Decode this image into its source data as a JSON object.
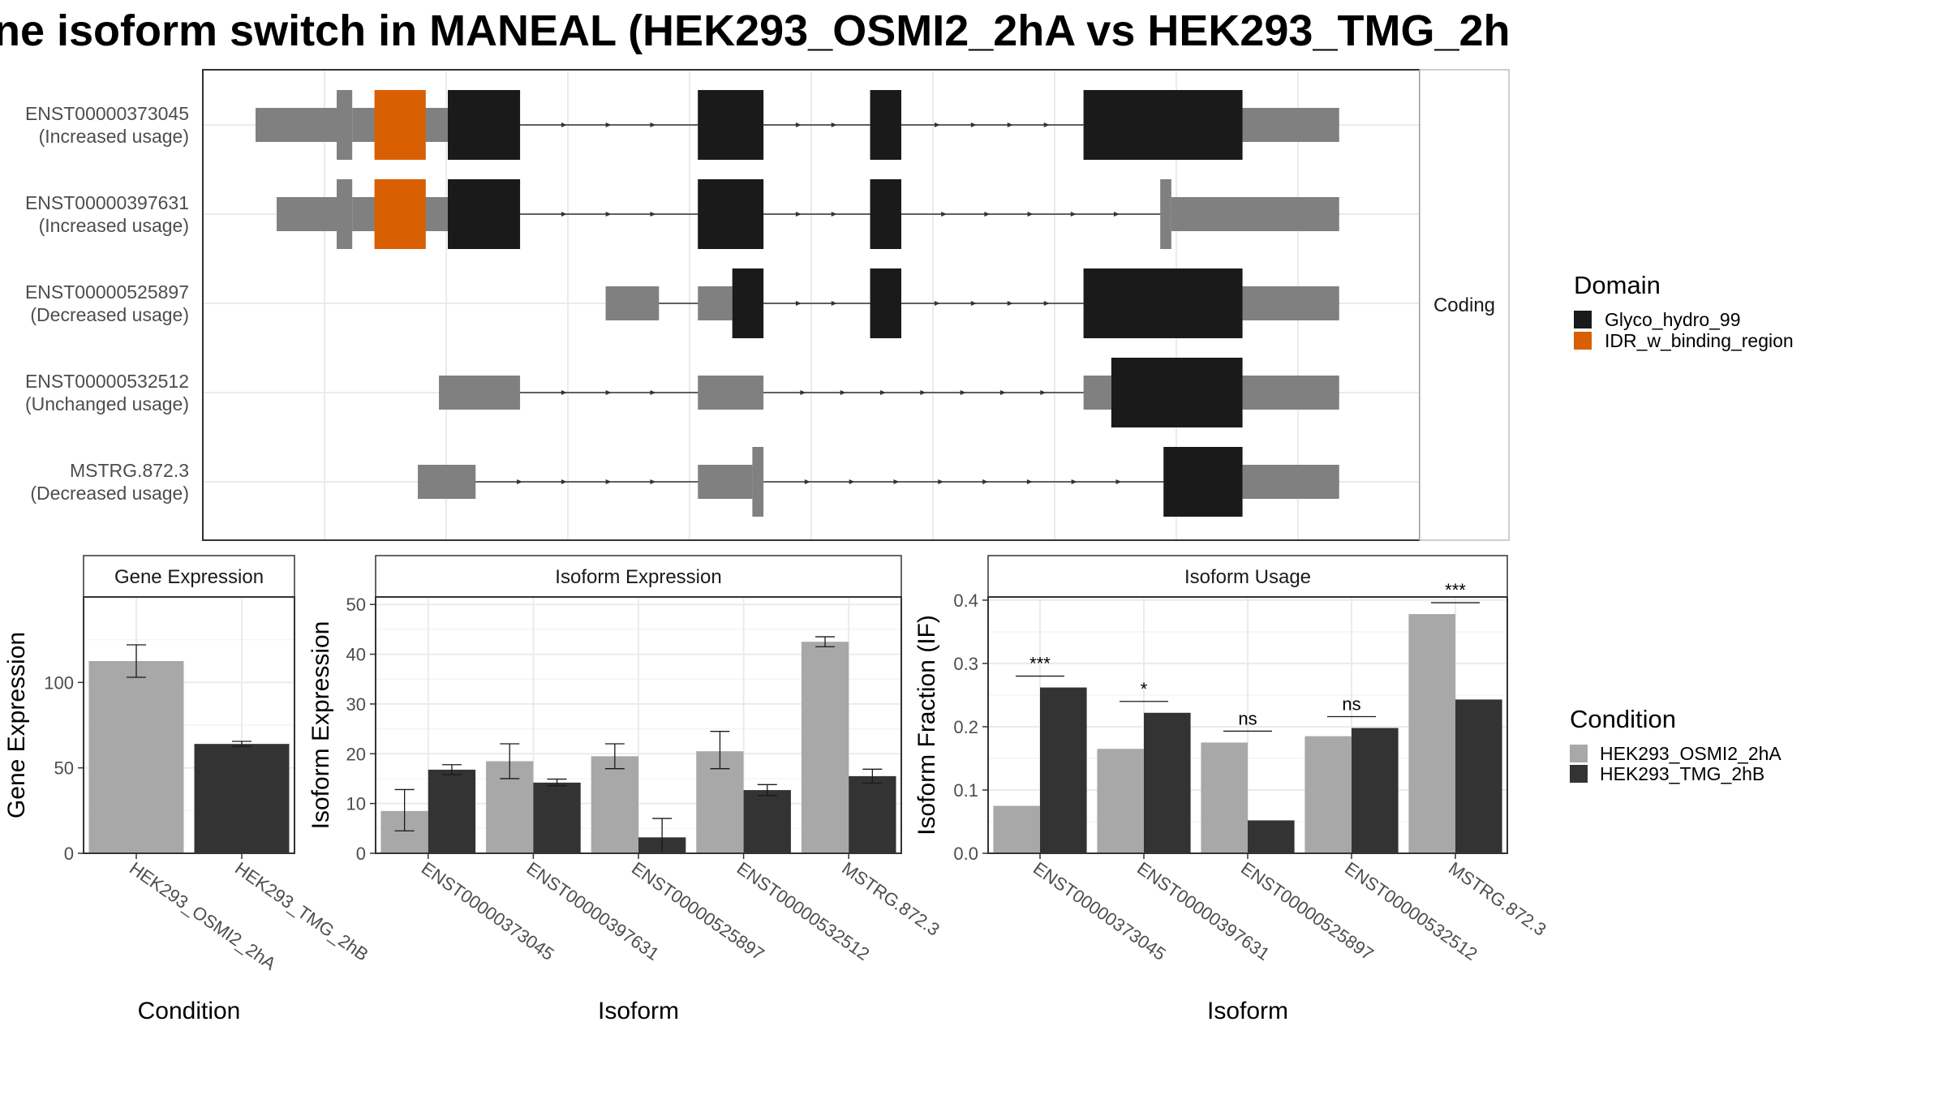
{
  "title": "ne isoform switch in MANEAL (HEK293_OSMI2_2hA vs HEK293_TMG_2h",
  "chart_data": [
    {
      "type": "gene-structure",
      "facet_label": "Coding",
      "legend": {
        "title": "Domain",
        "items": [
          {
            "name": "Glyco_hydro_99",
            "color": "#1a1a1a"
          },
          {
            "name": "IDR_w_binding_region",
            "color": "#d95f02"
          }
        ]
      },
      "isoforms": [
        {
          "id": "ENST00000373045",
          "label": "(Increased usage)",
          "utr": [
            [
              0,
              0.073
            ],
            [
              0.087,
              0.119
            ],
            [
              0.153,
              0.173
            ],
            [
              0.863,
              0.975
            ]
          ],
          "cds": [
            [
              0.073,
              0.087
            ],
            [
              0.119,
              0.153
            ],
            [
              0.173,
              0.238
            ],
            [
              0.398,
              0.457
            ],
            [
              0.553,
              0.581
            ],
            [
              0.745,
              0.888
            ]
          ],
          "domains": [
            [
              0.107,
              0.153,
              "IDR_w_binding_region"
            ]
          ]
        },
        {
          "id": "ENST00000397631",
          "label": "(Increased usage)",
          "utr": [
            [
              0.019,
              0.073
            ],
            [
              0.087,
              0.119
            ],
            [
              0.153,
              0.173
            ],
            [
              0.824,
              0.975
            ]
          ],
          "cds": [
            [
              0.073,
              0.087
            ],
            [
              0.119,
              0.153
            ],
            [
              0.173,
              0.238
            ],
            [
              0.398,
              0.457
            ],
            [
              0.553,
              0.581
            ],
            [
              0.814,
              0.824
            ]
          ],
          "domains": [
            [
              0.107,
              0.153,
              "IDR_w_binding_region"
            ]
          ]
        },
        {
          "id": "ENST00000525897",
          "label": "(Decreased usage)",
          "utr": [
            [
              0.315,
              0.363
            ],
            [
              0.398,
              0.429
            ],
            [
              0.863,
              0.975
            ]
          ],
          "cds": [
            [
              0.429,
              0.457
            ],
            [
              0.553,
              0.581
            ],
            [
              0.745,
              0.888
            ]
          ],
          "domains": []
        },
        {
          "id": "ENST00000532512",
          "label": "(Unchanged usage)",
          "utr": [
            [
              0.165,
              0.238
            ],
            [
              0.398,
              0.457
            ],
            [
              0.745,
              0.77
            ],
            [
              0.863,
              0.975
            ]
          ],
          "cds": [
            [
              0.77,
              0.888
            ]
          ],
          "domains": []
        },
        {
          "id": "MSTRG.872.3",
          "label": "(Decreased usage)",
          "utr": [
            [
              0.146,
              0.198
            ],
            [
              0.398,
              0.447
            ],
            [
              0.888,
              0.975
            ]
          ],
          "cds": [
            [
              0.447,
              0.457
            ],
            [
              0.817,
              0.888
            ]
          ],
          "domains": []
        }
      ]
    },
    {
      "type": "bar",
      "strip": "Gene Expression",
      "xlabel": "Condition",
      "ylabel": "Gene Expression",
      "ylim": [
        0,
        150
      ],
      "yticks": [
        0,
        50,
        100
      ],
      "categories": [
        "HEK293_OSMI2_2hA",
        "HEK293_TMG_2hB"
      ],
      "values": [
        112.5,
        64
      ],
      "errors": [
        [
          103,
          122
        ],
        [
          62.5,
          65.5
        ]
      ]
    },
    {
      "type": "bar",
      "strip": "Isoform Expression",
      "xlabel": "Isoform",
      "ylabel": "Isoform Expression",
      "ylim": [
        0,
        51.5
      ],
      "yticks": [
        0,
        10,
        20,
        30,
        40,
        50
      ],
      "categories": [
        "ENST00000373045",
        "ENST00000397631",
        "ENST00000525897",
        "ENST00000532512",
        "MSTRG.872.3"
      ],
      "series": [
        {
          "name": "HEK293_OSMI2_2hA",
          "values": [
            8.5,
            18.5,
            19.5,
            20.5,
            42.5
          ],
          "errors": [
            [
              4.5,
              12.8
            ],
            [
              15,
              22
            ],
            [
              17,
              22
            ],
            [
              17,
              24.5
            ],
            [
              41.5,
              43.5
            ]
          ]
        },
        {
          "name": "HEK293_TMG_2hB",
          "values": [
            16.8,
            14.2,
            3.2,
            12.7,
            15.5
          ],
          "errors": [
            [
              15.8,
              17.8
            ],
            [
              13.6,
              14.9
            ],
            [
              0,
              7
            ],
            [
              11.6,
              13.8
            ],
            [
              14.1,
              16.9
            ]
          ]
        }
      ]
    },
    {
      "type": "bar",
      "strip": "Isoform Usage",
      "xlabel": "Isoform",
      "ylabel": "Isoform Fraction (IF)",
      "ylim": [
        0,
        0.405
      ],
      "yticks": [
        "0.0",
        "0.1",
        "0.2",
        "0.3",
        "0.4"
      ],
      "categories": [
        "ENST00000373045",
        "ENST00000397631",
        "ENST00000525897",
        "ENST00000532512",
        "MSTRG.872.3"
      ],
      "series": [
        {
          "name": "HEK293_OSMI2_2hA",
          "values": [
            0.075,
            0.165,
            0.175,
            0.185,
            0.378
          ]
        },
        {
          "name": "HEK293_TMG_2hB",
          "values": [
            0.262,
            0.222,
            0.052,
            0.198,
            0.243
          ]
        }
      ],
      "significance": [
        "***",
        "*",
        "ns",
        "ns",
        "***"
      ]
    }
  ],
  "condition_legend": {
    "title": "Condition",
    "items": [
      {
        "name": "HEK293_OSMI2_2hA",
        "color": "#a8a8a8"
      },
      {
        "name": "HEK293_TMG_2hB",
        "color": "#333333"
      }
    ]
  }
}
